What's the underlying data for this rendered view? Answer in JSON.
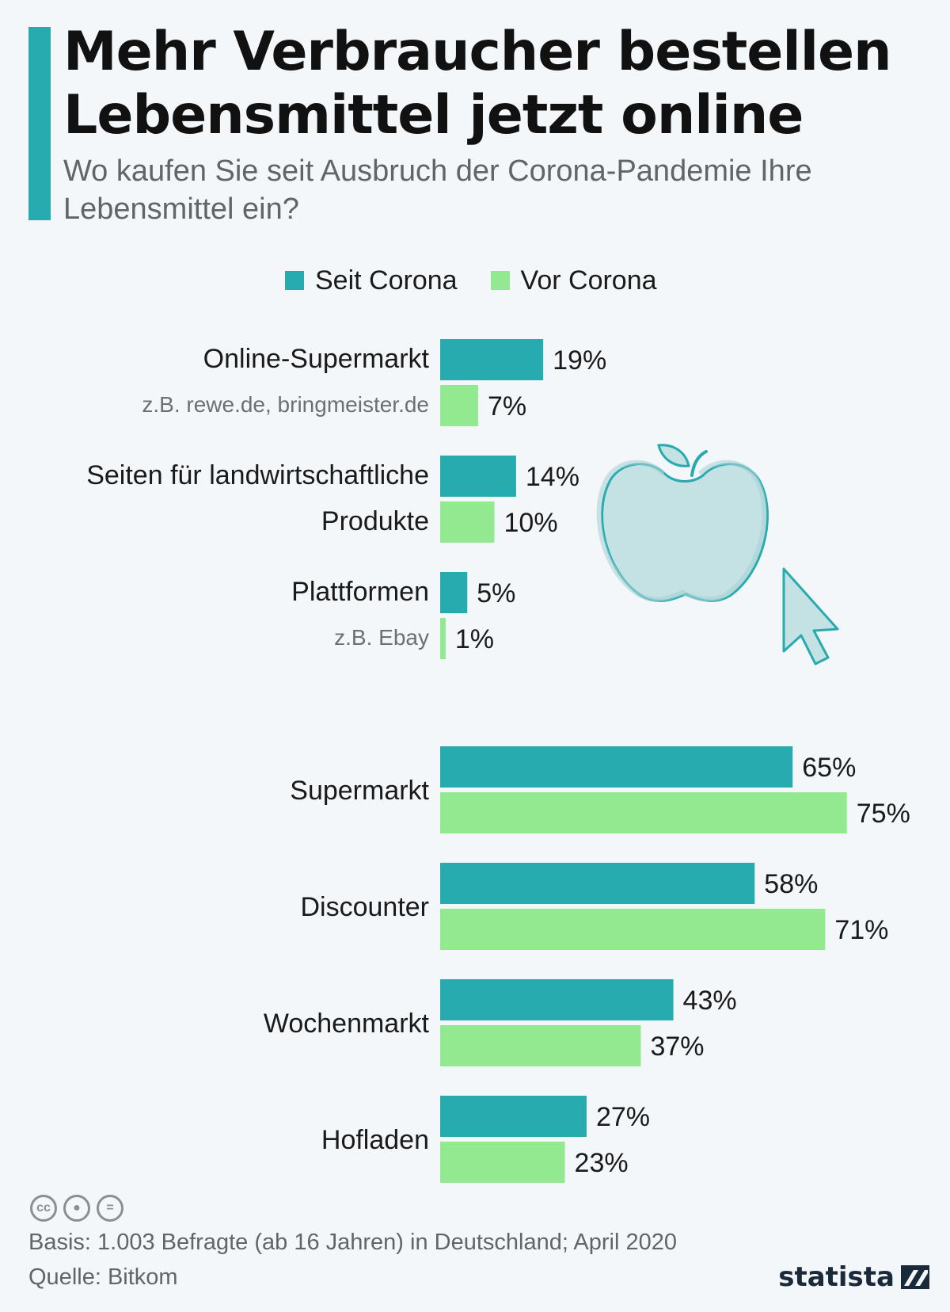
{
  "header": {
    "title": "Mehr Verbraucher bestellen Lebensmittel jetzt online",
    "subtitle": "Wo kaufen Sie seit Ausbruch der Corona-Pandemie Ihre Lebensmittel ein?"
  },
  "legend": {
    "seit_label": "Seit Corona",
    "vor_label": "Vor Corona"
  },
  "colors": {
    "seit": "#27abae",
    "vor": "#92e98f",
    "accent": "#27abae"
  },
  "chart_data": {
    "type": "bar",
    "orientation": "horizontal",
    "unit": "%",
    "categories": [
      {
        "label": [
          "Online-Supermarkt"
        ],
        "sub": "z.B. rewe.de, bringmeister.de"
      },
      {
        "label": [
          "Seiten für landwirtschaftliche",
          "Produkte"
        ],
        "sub": ""
      },
      {
        "label": [
          "Plattformen"
        ],
        "sub": "z.B. Ebay"
      },
      {
        "label": [
          "Supermarkt"
        ],
        "sub": ""
      },
      {
        "label": [
          "Discounter"
        ],
        "sub": ""
      },
      {
        "label": [
          "Wochenmarkt"
        ],
        "sub": ""
      },
      {
        "label": [
          "Hofladen"
        ],
        "sub": ""
      }
    ],
    "series": [
      {
        "name": "Seit Corona",
        "values": [
          19,
          14,
          5,
          65,
          58,
          43,
          27
        ]
      },
      {
        "name": "Vor Corona",
        "values": [
          7,
          10,
          1,
          75,
          71,
          37,
          23
        ]
      }
    ],
    "xlim": [
      0,
      100
    ],
    "grid": false,
    "legend_position": "top"
  },
  "footer": {
    "basis": "Basis: 1.003 Befragte (ab 16 Jahren) in Deutschland; April 2020",
    "source": "Quelle: Bitkom",
    "logo_text": "statista",
    "cc_icons": [
      "cc-icon",
      "by-icon",
      "nd-icon"
    ]
  }
}
